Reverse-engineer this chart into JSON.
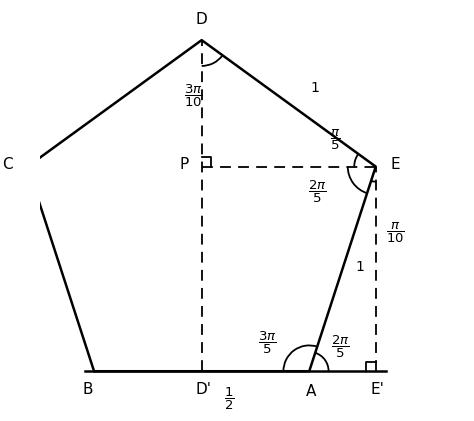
{
  "bg_color": "#ffffff",
  "line_color": "#000000",
  "fig_width": 4.74,
  "fig_height": 4.21,
  "dpi": 100,
  "labels": {
    "D": "D",
    "C": "C",
    "B": "B",
    "E": "E",
    "A": "A",
    "P": "P",
    "Dp": "D'",
    "Ep": "E'"
  },
  "angle_labels": {
    "D_angle": "\\frac{3\\pi}{10}",
    "E_upper": "\\frac{\\pi}{5}",
    "E_mid": "\\frac{2\\pi}{5}",
    "E_lower": "\\frac{\\pi}{10}",
    "A_left": "\\frac{3\\pi}{5}",
    "A_right": "\\frac{2\\pi}{5}"
  },
  "length_labels": {
    "DE": "1",
    "AE": "1",
    "half": "\\frac{1}{2}"
  }
}
